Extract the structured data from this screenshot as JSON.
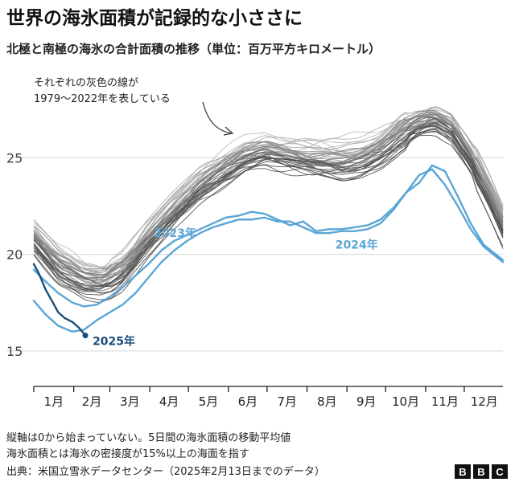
{
  "chart_data": {
    "type": "line",
    "title": "世界の海氷面積が記録的な小ささに",
    "subtitle": "北極と南極の海氷の合計面積の推移（単位：百万平方キロメートル）",
    "ylim": [
      13.5,
      29
    ],
    "yticks": [
      15,
      20,
      25
    ],
    "months": [
      "1月",
      "2月",
      "3月",
      "4月",
      "5月",
      "6月",
      "7月",
      "8月",
      "9月",
      "10月",
      "11月",
      "12月"
    ],
    "annotation": [
      "それぞれの灰色の線が",
      "1979〜2022年を表している"
    ],
    "background_years": {
      "label": "1979〜2022年",
      "color": "#9a9a9a"
    },
    "series": [
      {
        "name": "2023年",
        "color": "#5aa6d6",
        "x": [
          1,
          10,
          20,
          31,
          40,
          50,
          60,
          70,
          80,
          90,
          100,
          110,
          120,
          130,
          140,
          150,
          160,
          170,
          180,
          190,
          200,
          210,
          220,
          230,
          240,
          250,
          260,
          270,
          280,
          290,
          300,
          310,
          320,
          330,
          340,
          350,
          365
        ],
        "y": [
          17.6,
          16.9,
          16.3,
          16.0,
          16.1,
          16.6,
          17.0,
          17.4,
          18.0,
          18.8,
          19.6,
          20.2,
          20.7,
          21.1,
          21.4,
          21.6,
          21.8,
          21.8,
          21.9,
          21.7,
          21.7,
          21.4,
          21.1,
          21.1,
          21.2,
          21.2,
          21.3,
          21.6,
          22.3,
          23.2,
          24.1,
          24.4,
          23.6,
          22.5,
          21.3,
          20.4,
          19.6
        ]
      },
      {
        "name": "2024年",
        "color": "#5aa6d6",
        "x": [
          1,
          10,
          20,
          31,
          40,
          50,
          60,
          70,
          80,
          90,
          100,
          110,
          120,
          130,
          140,
          150,
          160,
          170,
          180,
          190,
          200,
          210,
          220,
          230,
          240,
          250,
          260,
          270,
          280,
          290,
          300,
          310,
          320,
          330,
          340,
          350,
          365
        ],
        "y": [
          19.2,
          18.6,
          18.0,
          17.5,
          17.3,
          17.4,
          17.8,
          18.3,
          18.9,
          19.5,
          20.2,
          20.7,
          21.0,
          21.3,
          21.6,
          21.9,
          22.0,
          22.2,
          22.1,
          21.8,
          21.5,
          21.7,
          21.2,
          21.3,
          21.3,
          21.4,
          21.5,
          21.8,
          22.4,
          23.2,
          23.7,
          24.6,
          24.3,
          23.0,
          21.6,
          20.5,
          19.7
        ]
      },
      {
        "name": "2025年",
        "color": "#1a4e7a",
        "x": [
          1,
          5,
          10,
          15,
          20,
          25,
          31,
          36,
          41
        ],
        "y": [
          19.5,
          19.0,
          18.2,
          17.6,
          17.0,
          16.7,
          16.5,
          16.2,
          15.8
        ]
      }
    ]
  },
  "notes": [
    "縦軸は0から始まっていない。5日間の海氷面積の移動平均値",
    "海氷面積とは海氷の密接度が15%以上の海面を指す"
  ],
  "source": "出典：米国立雪氷データセンター（2025年2月13日までのデータ）",
  "brand": [
    "B",
    "B",
    "C"
  ]
}
